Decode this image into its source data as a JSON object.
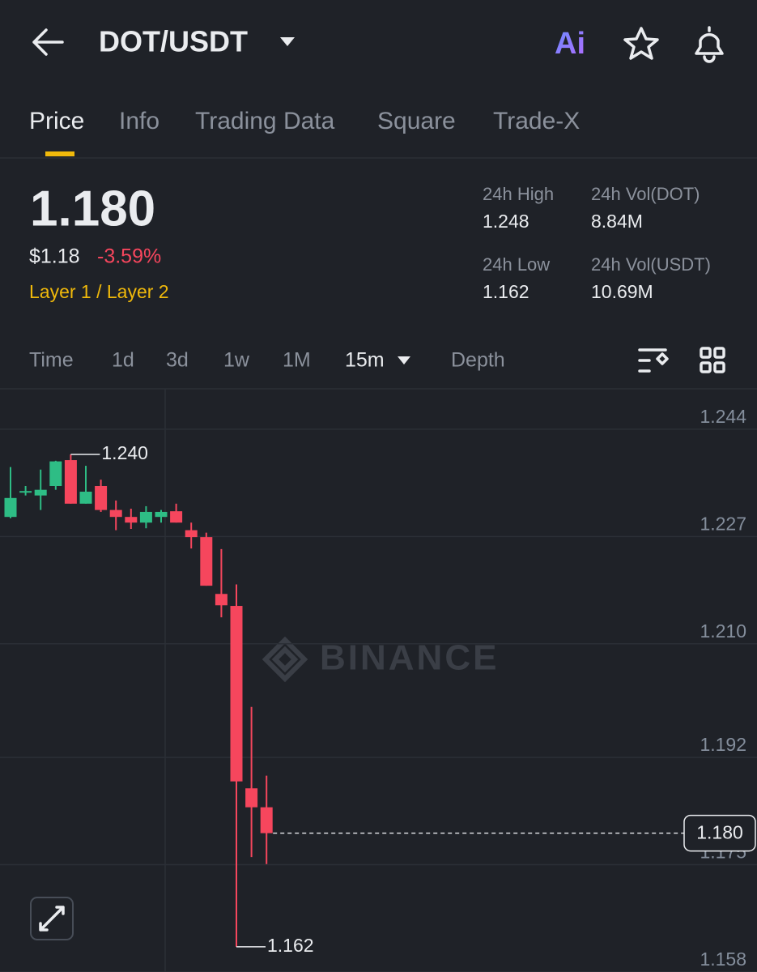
{
  "header": {
    "pair": "DOT/USDT",
    "ai_badge": "Ai"
  },
  "tabs": [
    "Price",
    "Info",
    "Trading Data",
    "Square",
    "Trade-X"
  ],
  "ticker": {
    "price": "1.180",
    "usd_price": "$1.18",
    "change": "-3.59%",
    "tag": "Layer 1 / Layer 2",
    "stats": [
      {
        "label": "24h High",
        "value": "1.248"
      },
      {
        "label": "24h Vol(DOT)",
        "value": "8.84M"
      },
      {
        "label": "24h Low",
        "value": "1.162"
      },
      {
        "label": "24h Vol(USDT)",
        "value": "10.69M"
      }
    ]
  },
  "intervals": [
    "Time",
    "1d",
    "3d",
    "1w",
    "1M",
    "15m",
    "Depth"
  ],
  "chart_data": {
    "type": "candlestick",
    "watermark": "BINANCE",
    "up_color": "#2ebd85",
    "down_color": "#f6465d",
    "open": [
      1.2301,
      1.234,
      1.2335,
      1.235,
      1.2391,
      1.2322,
      1.235,
      1.2312,
      1.2301,
      1.2292,
      1.2301,
      1.231,
      1.228,
      1.2269,
      1.2179,
      1.216,
      1.1871,
      1.1841
    ],
    "high": [
      1.238,
      1.235,
      1.2376,
      1.239,
      1.24,
      1.2382,
      1.236,
      1.2327,
      1.2314,
      1.2318,
      1.2312,
      1.2322,
      1.2292,
      1.2276,
      1.225,
      1.2194,
      1.2,
      1.1891
    ],
    "low": [
      1.2299,
      1.2335,
      1.2312,
      1.2344,
      1.2322,
      1.2322,
      1.2309,
      1.228,
      1.2282,
      1.2283,
      1.2292,
      1.2292,
      1.2251,
      1.2192,
      1.2142,
      1.162,
      1.1762,
      1.1751
    ],
    "close": [
      1.2331,
      1.2342,
      1.2344,
      1.2389,
      1.2322,
      1.2341,
      1.2312,
      1.2301,
      1.2292,
      1.2309,
      1.2309,
      1.2292,
      1.2269,
      1.2192,
      1.2161,
      1.1882,
      1.1841,
      1.18
    ],
    "ylim": [
      1.158,
      1.2504
    ],
    "yticks": [
      1.244,
      1.227,
      {
        "value": 1.21,
        "label": "1.210"
      },
      1.192,
      1.175,
      1.158
    ],
    "grid": true,
    "annotations": [
      {
        "value": 1.24,
        "label": "1.240"
      },
      {
        "value": 1.162,
        "label": "1.162"
      }
    ],
    "last_price": {
      "value": 1.18,
      "label": "1.180"
    }
  }
}
